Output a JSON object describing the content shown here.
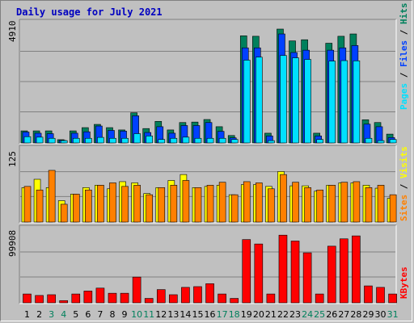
{
  "title": "Daily usage for July 2021",
  "colors": {
    "title": "#0000c0",
    "hits": "#00805c",
    "files": "#0040ff",
    "pages": "#00e0ff",
    "visits": "#ffff00",
    "sites": "#ff8000",
    "kbytes": "#ff0000",
    "weekend_day": "#00805c"
  },
  "side_labels": {
    "pages": "Pages",
    "files": "Files",
    "hits": "Hits",
    "visits": "Visits",
    "sites": "Sites",
    "kbytes": "KBytes",
    "separator": " / "
  },
  "chart_data": [
    {
      "type": "bar",
      "panel": "hits-files-pages",
      "ymax_label": "4910",
      "ylim": [
        0,
        4910
      ],
      "categories": [
        "1",
        "2",
        "3",
        "4",
        "5",
        "6",
        "7",
        "8",
        "9",
        "10",
        "11",
        "12",
        "13",
        "14",
        "15",
        "16",
        "17",
        "18",
        "19",
        "20",
        "21",
        "22",
        "23",
        "24",
        "25",
        "26",
        "27",
        "28",
        "29",
        "30",
        "31"
      ],
      "weekend_days": [
        "3",
        "4",
        "10",
        "11",
        "17",
        "18",
        "24",
        "25",
        "31"
      ],
      "series": [
        {
          "name": "Hits",
          "values": [
            520,
            520,
            520,
            140,
            520,
            660,
            800,
            660,
            560,
            1300,
            620,
            930,
            560,
            880,
            900,
            1010,
            700,
            320,
            4620,
            4600,
            420,
            4910,
            4400,
            4450,
            420,
            4300,
            4600,
            4700,
            1000,
            880,
            380
          ]
        },
        {
          "name": "Files",
          "values": [
            470,
            420,
            400,
            110,
            420,
            480,
            730,
            540,
            510,
            1170,
            450,
            700,
            420,
            750,
            750,
            880,
            500,
            220,
            4100,
            4100,
            300,
            4700,
            3900,
            4000,
            300,
            4000,
            4100,
            4200,
            810,
            700,
            230
          ]
        },
        {
          "name": "Pages",
          "values": [
            270,
            250,
            200,
            100,
            200,
            200,
            240,
            200,
            200,
            400,
            300,
            150,
            200,
            250,
            200,
            200,
            200,
            150,
            3570,
            3700,
            100,
            3770,
            3670,
            3600,
            150,
            3530,
            3550,
            3540,
            200,
            100,
            150
          ]
        }
      ]
    },
    {
      "type": "bar",
      "panel": "visits-sites",
      "ymax_label": "125",
      "ylim": [
        0,
        125
      ],
      "series": [
        {
          "name": "Visits",
          "values": [
            58,
            72,
            58,
            36,
            47,
            58,
            62,
            56,
            68,
            66,
            48,
            58,
            70,
            80,
            58,
            60,
            62,
            46,
            63,
            63,
            60,
            85,
            61,
            61,
            52,
            62,
            66,
            66,
            62,
            57,
            40
          ]
        },
        {
          "name": "Sites",
          "values": [
            60,
            54,
            87,
            30,
            47,
            54,
            62,
            66,
            60,
            62,
            46,
            58,
            62,
            70,
            58,
            62,
            67,
            46,
            68,
            66,
            56,
            80,
            67,
            58,
            54,
            62,
            67,
            68,
            58,
            62,
            46
          ]
        }
      ]
    },
    {
      "type": "bar",
      "panel": "kbytes",
      "ymax_label": "99908",
      "ylim": [
        0,
        99908
      ],
      "series": [
        {
          "name": "KBytes",
          "values": [
            12000,
            10000,
            11000,
            3000,
            12000,
            16000,
            20000,
            13000,
            13000,
            35000,
            6000,
            18000,
            11000,
            21000,
            22000,
            26000,
            12000,
            6000,
            86000,
            80000,
            12000,
            92000,
            84000,
            68000,
            12000,
            77000,
            87000,
            91000,
            23000,
            21000,
            12000
          ]
        }
      ]
    }
  ]
}
